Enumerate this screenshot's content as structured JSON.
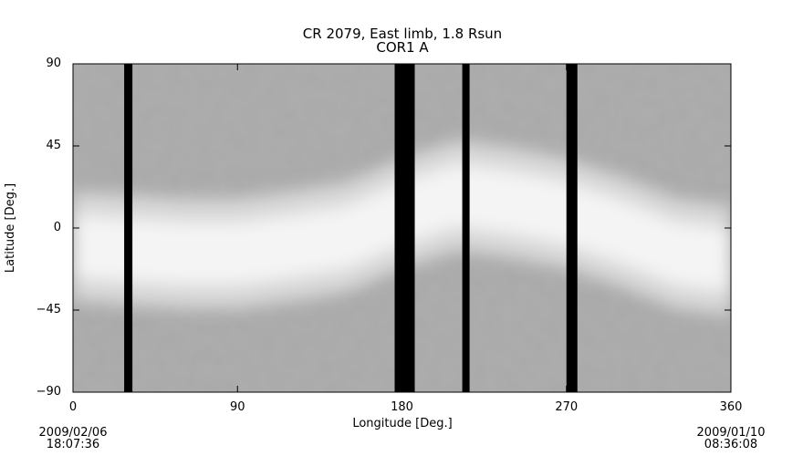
{
  "chart_data": {
    "type": "heatmap",
    "title": "CR 2079, East limb, 1.8 Rsun",
    "subtitle": "COR1 A",
    "xlabel": "Longitude [Deg.]",
    "ylabel": "Latitude [Deg.]",
    "xlim": [
      0,
      360
    ],
    "ylim": [
      -90,
      90
    ],
    "xticks": [
      "0",
      "90",
      "180",
      "270",
      "360"
    ],
    "yticks": [
      "90",
      "45",
      "0",
      "−45",
      "−90"
    ],
    "colormap": "grayscale",
    "start_date": "2009/02/06",
    "start_time": "18:07:36",
    "end_date": "2009/01/10",
    "end_time": "08:36:08",
    "data_gaps_longitude": [
      [
        28,
        32.5
      ],
      [
        176,
        187
      ],
      [
        213,
        217
      ],
      [
        270,
        276
      ]
    ],
    "streamer_belt_center_latitude": {
      "longitude": [
        0,
        30,
        60,
        90,
        120,
        150,
        180,
        210,
        240,
        270,
        300,
        330,
        360
      ],
      "latitude": [
        -10,
        -12,
        -14,
        -14,
        -10,
        -5,
        8,
        18,
        14,
        8,
        -2,
        -14,
        -18
      ]
    }
  }
}
